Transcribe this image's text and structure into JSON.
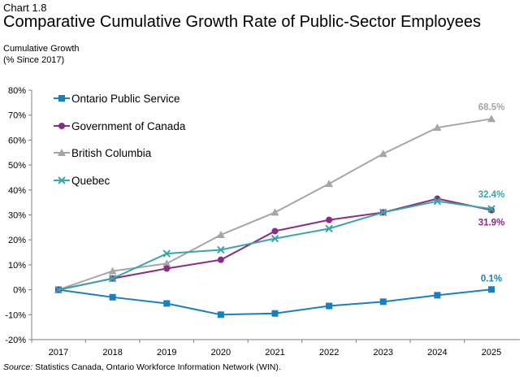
{
  "header": {
    "chart_number": "Chart 1.8",
    "title": "Comparative Cumulative Growth Rate of Public-Sector Employees"
  },
  "axis_label": {
    "line1": "Cumulative Growth",
    "line2": "(% Since 2017)"
  },
  "source": {
    "prefix": "Source:",
    "text": " Statistics Canada, Ontario Workforce Information Network (WIN)."
  },
  "chart_data": {
    "type": "line",
    "title": "Comparative Cumulative Growth Rate of Public-Sector Employees",
    "xlabel": "",
    "ylabel": "Cumulative Growth (% Since 2017)",
    "x": [
      "2017",
      "2018",
      "2019",
      "2020",
      "2021",
      "2022",
      "2023",
      "2024",
      "2025"
    ],
    "ylim": [
      -20,
      80
    ],
    "yticks": [
      -20,
      -10,
      0,
      10,
      20,
      30,
      40,
      50,
      60,
      70,
      80
    ],
    "ytick_labels": [
      "-20%",
      "-10%",
      "0%",
      "10%",
      "20%",
      "30%",
      "40%",
      "50%",
      "60%",
      "70%",
      "80%"
    ],
    "grid": false,
    "legend_position": "top-left",
    "series": [
      {
        "name": "Ontario Public Service",
        "color": "#1a7fc1",
        "marker": "square",
        "values": [
          0,
          -3,
          -5.5,
          -10,
          -9.5,
          -6.5,
          -4.8,
          -2.2,
          0.1
        ],
        "end_label": "0.1%"
      },
      {
        "name": "Government of Canada",
        "color": "#8b2a87",
        "marker": "circle",
        "values": [
          0,
          4.5,
          8.5,
          12,
          23.5,
          28,
          31,
          36.5,
          31.9
        ],
        "end_label": "31.9%"
      },
      {
        "name": "British Columbia",
        "color": "#a6a6a6",
        "marker": "triangle",
        "values": [
          0,
          7.5,
          10.5,
          22,
          31,
          42.5,
          54.5,
          65,
          68.5
        ],
        "end_label": "68.5%"
      },
      {
        "name": "Quebec",
        "color": "#3aa6a6",
        "marker": "x",
        "values": [
          0,
          4.5,
          14.5,
          16,
          20.5,
          24.5,
          31,
          35.5,
          32.4
        ],
        "end_label": "32.4%"
      }
    ]
  }
}
